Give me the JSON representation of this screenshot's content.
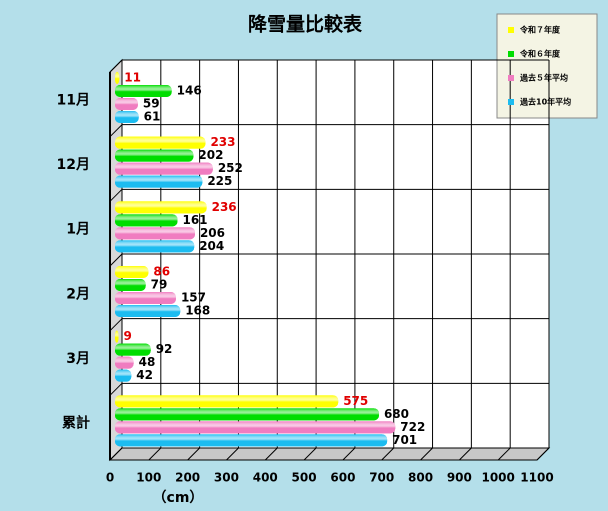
{
  "chart_data": {
    "type": "bar",
    "orientation": "horizontal",
    "title": "降雪量比較表",
    "categories": [
      "11月",
      "12月",
      "1月",
      "2月",
      "3月",
      "累計"
    ],
    "series": [
      {
        "name": "令和７年度",
        "color": "#ffff00",
        "label_color": "#e00000",
        "values": [
          11,
          233,
          236,
          86,
          9,
          575
        ]
      },
      {
        "name": "令和６年度",
        "color": "#00dd00",
        "label_color": "#000000",
        "values": [
          146,
          202,
          161,
          79,
          92,
          680
        ]
      },
      {
        "name": "過去５年平均",
        "color": "#f07cc0",
        "label_color": "#000000",
        "values": [
          59,
          252,
          206,
          157,
          48,
          722
        ]
      },
      {
        "name": "過去10年平均",
        "color": "#1cbcf0",
        "label_color": "#000000",
        "values": [
          61,
          225,
          204,
          168,
          42,
          701
        ]
      }
    ],
    "xlim": [
      0,
      1100
    ],
    "xticks": [
      0,
      100,
      200,
      300,
      400,
      500,
      600,
      700,
      800,
      900,
      1000,
      1100
    ],
    "x_label": "（cm）",
    "grid": true,
    "legend": "upper right"
  }
}
